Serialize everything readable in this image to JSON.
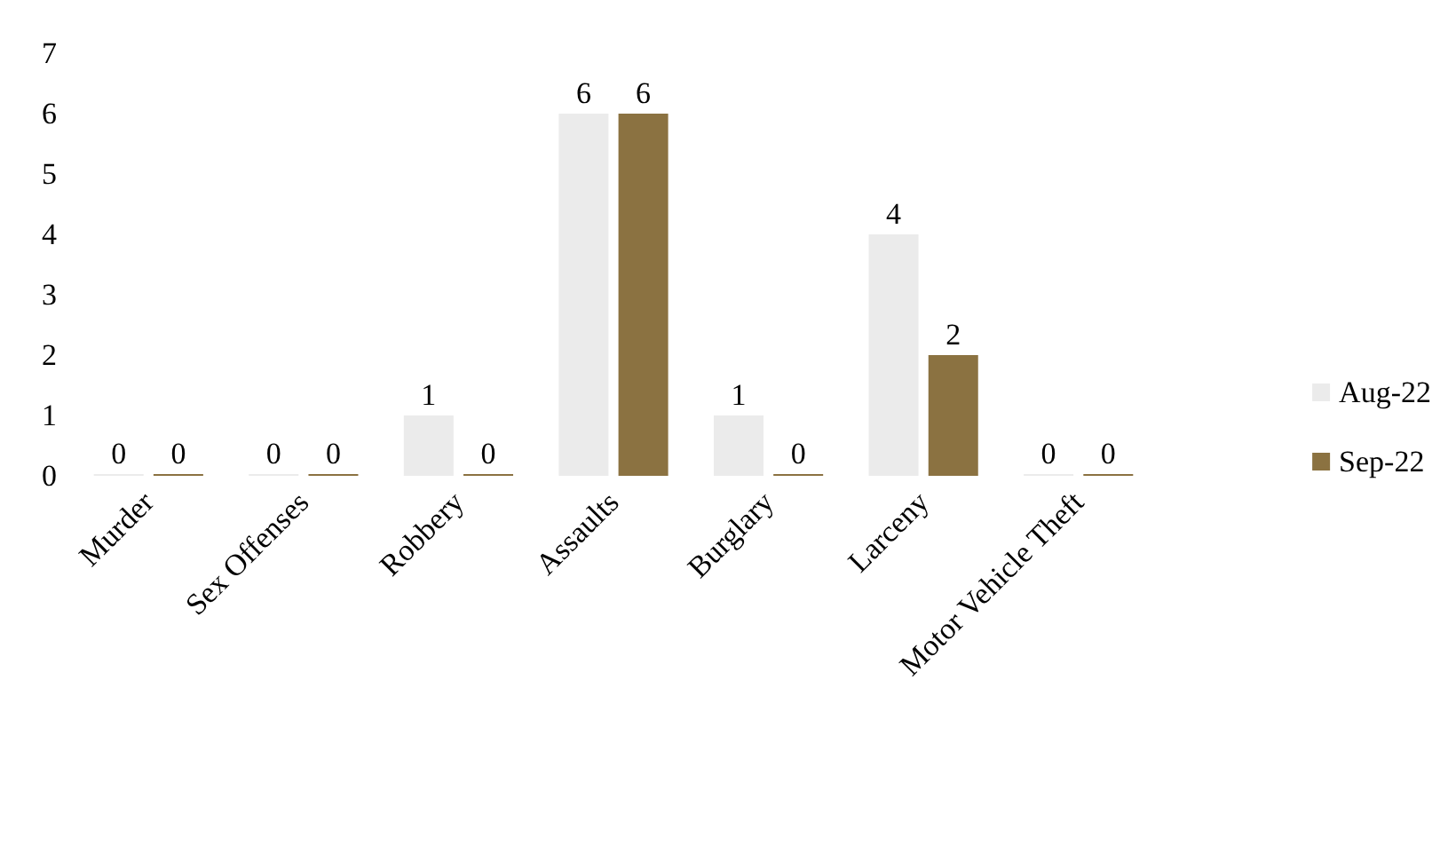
{
  "chart_data": {
    "type": "bar",
    "categories": [
      "Murder",
      "Sex Offenses",
      "Robbery",
      "Assaults",
      "Burglary",
      "Larceny",
      "Motor Vehicle Theft"
    ],
    "series": [
      {
        "name": "Aug-22",
        "color": "#ebebeb",
        "values": [
          0,
          0,
          1,
          6,
          1,
          4,
          0
        ]
      },
      {
        "name": "Sep-22",
        "color": "#8b7241",
        "values": [
          0,
          0,
          0,
          6,
          0,
          2,
          0
        ]
      }
    ],
    "ylim": [
      0,
      7
    ],
    "yticks": [
      0,
      1,
      2,
      3,
      4,
      5,
      6,
      7
    ],
    "grid": false,
    "legend": "right",
    "data_labels": true
  }
}
